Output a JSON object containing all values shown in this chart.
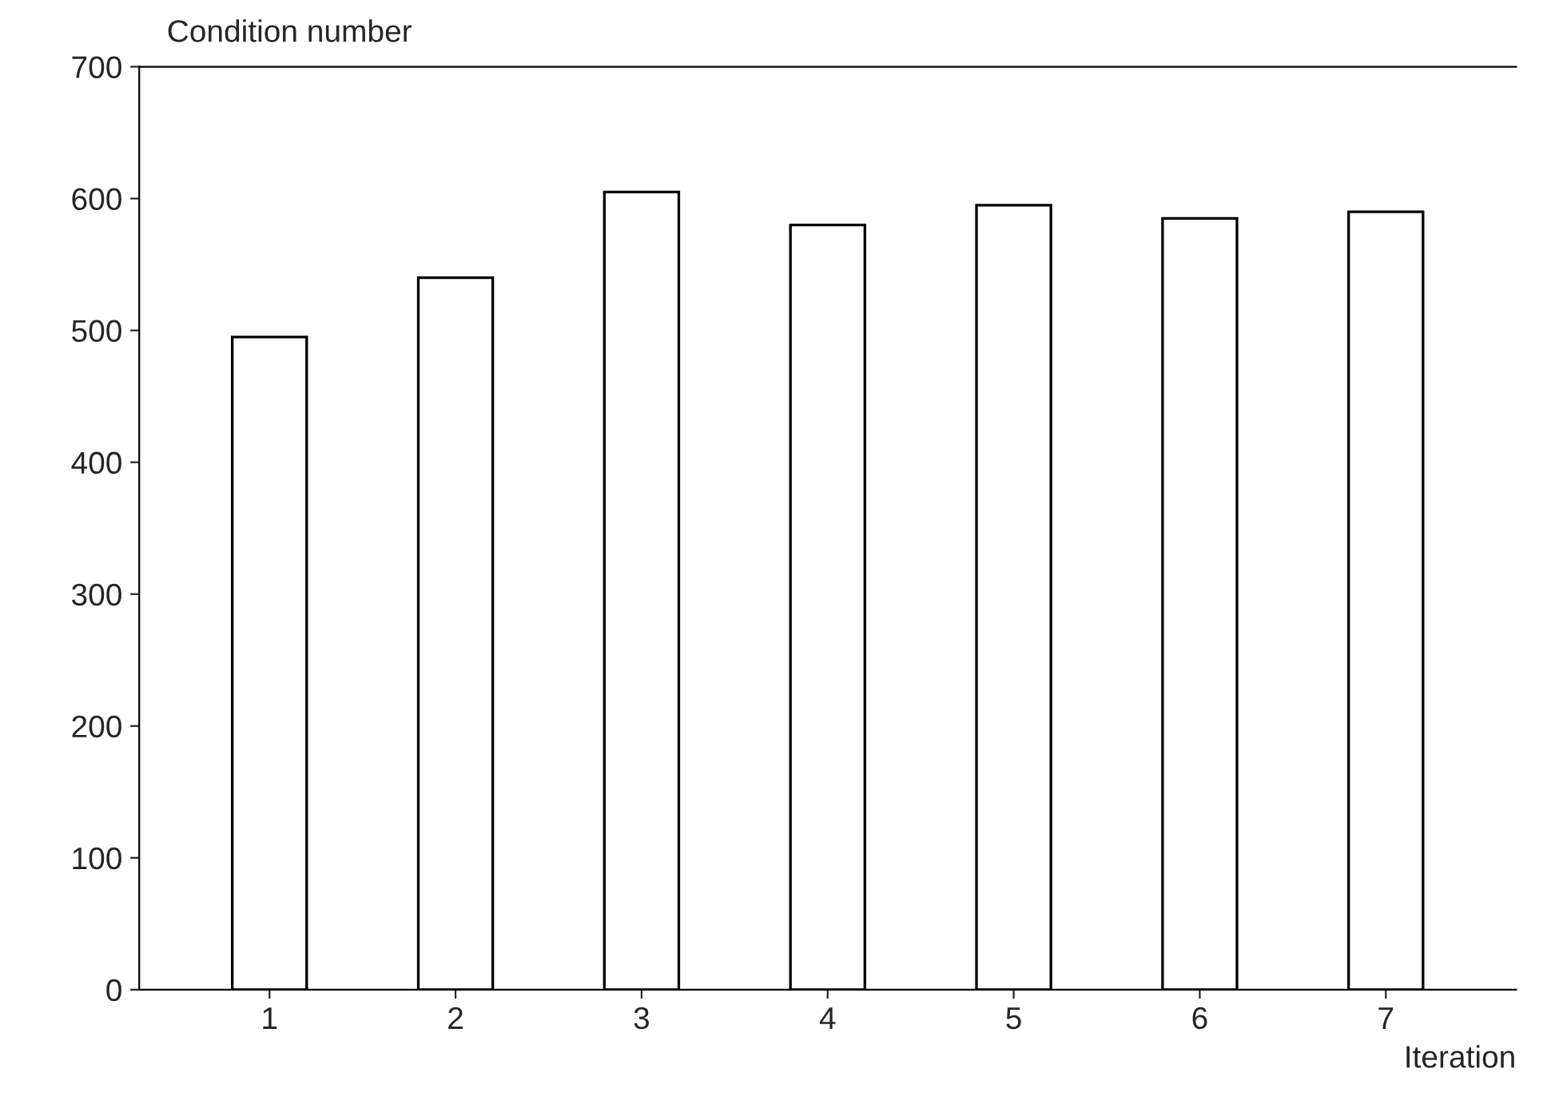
{
  "chart_data": {
    "type": "bar",
    "ylabel": "Condition number",
    "xlabel": "Iteration",
    "categories": [
      "1",
      "2",
      "3",
      "4",
      "5",
      "6",
      "7"
    ],
    "values": [
      495,
      540,
      605,
      580,
      595,
      585,
      590
    ],
    "color": "#ffffff",
    "ylim": [
      0,
      700
    ],
    "yticks": [
      0,
      100,
      200,
      300,
      400,
      500,
      600,
      700
    ],
    "grid": false
  }
}
